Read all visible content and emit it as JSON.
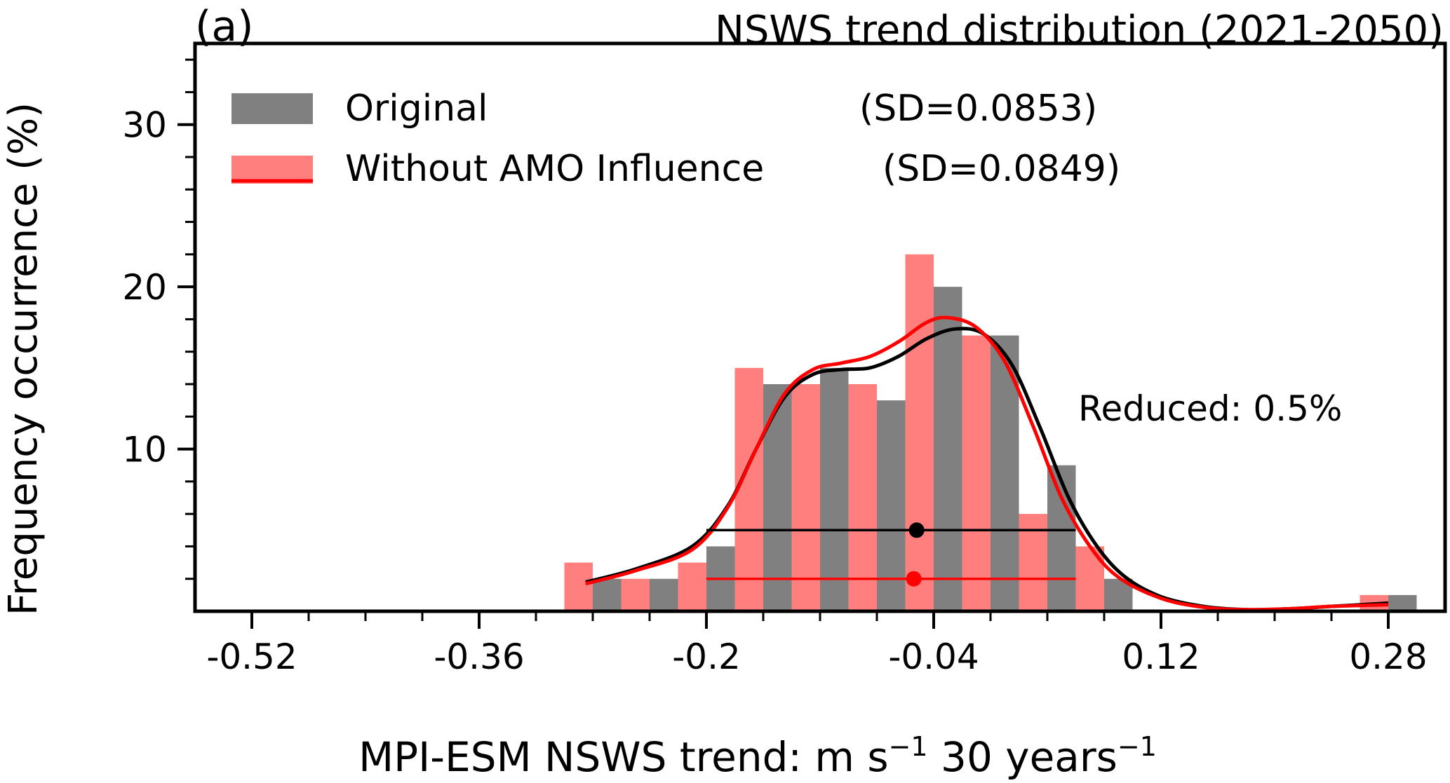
{
  "chart_data": {
    "type": "bar",
    "panel_label": "(a)",
    "title": "NSWS trend distribution (2021-2050)",
    "xlabel": "MPI-ESM NSWS trend: m s",
    "xlabel_sup1": "−1",
    "xlabel_mid": " 30 years",
    "xlabel_sup2": "−1",
    "ylabel": "Frequency occurrence (%)",
    "xlim": [
      -0.56,
      0.32
    ],
    "ylim": [
      0,
      35
    ],
    "xticks": [
      -0.52,
      -0.36,
      -0.2,
      -0.04,
      0.12,
      0.28
    ],
    "xtick_labels": [
      "-0.52",
      "-0.36",
      "-0.2",
      "-0.04",
      "0.12",
      "0.28"
    ],
    "yticks": [
      10,
      20,
      30
    ],
    "ytick_labels": [
      "10",
      "20",
      "30"
    ],
    "legend_position": "top-left",
    "grid": false,
    "bin_centers": [
      -0.28,
      -0.24,
      -0.2,
      -0.16,
      -0.12,
      -0.08,
      -0.04,
      0.0,
      0.04,
      0.08,
      0.12,
      0.16,
      0.2,
      0.24,
      0.28
    ],
    "series": [
      {
        "name": "Original",
        "sd_label": "(SD=0.0853)",
        "color": "#808080",
        "values": [
          2,
          2,
          4,
          14,
          15,
          13,
          20,
          17,
          9,
          2,
          0,
          0,
          0,
          0,
          1
        ],
        "kde": [
          [
            -0.285,
            1.8
          ],
          [
            -0.25,
            2.6
          ],
          [
            -0.21,
            4.0
          ],
          [
            -0.185,
            6.5
          ],
          [
            -0.165,
            10.0
          ],
          [
            -0.145,
            13.2
          ],
          [
            -0.125,
            14.6
          ],
          [
            -0.105,
            14.9
          ],
          [
            -0.085,
            15.0
          ],
          [
            -0.065,
            15.7
          ],
          [
            -0.045,
            16.8
          ],
          [
            -0.025,
            17.4
          ],
          [
            -0.005,
            17.1
          ],
          [
            0.015,
            15.2
          ],
          [
            0.035,
            11.3
          ],
          [
            0.055,
            7.0
          ],
          [
            0.075,
            4.0
          ],
          [
            0.095,
            2.1
          ],
          [
            0.12,
            0.9
          ],
          [
            0.15,
            0.3
          ],
          [
            0.18,
            0.1
          ],
          [
            0.21,
            0.15
          ],
          [
            0.24,
            0.3
          ],
          [
            0.28,
            0.5
          ]
        ],
        "mean": -0.052,
        "range": [
          -0.2,
          0.06
        ],
        "marker_y": 5
      },
      {
        "name": "Without AMO Influence",
        "sd_label": "(SD=0.0849)",
        "color": "#ff7f7f",
        "values": [
          3,
          2,
          3,
          15,
          14,
          14,
          22,
          17,
          6,
          4,
          0,
          0,
          0,
          0,
          1
        ],
        "kde": [
          [
            -0.285,
            1.7
          ],
          [
            -0.25,
            2.5
          ],
          [
            -0.21,
            3.8
          ],
          [
            -0.185,
            6.4
          ],
          [
            -0.165,
            10.0
          ],
          [
            -0.145,
            13.4
          ],
          [
            -0.125,
            14.9
          ],
          [
            -0.105,
            15.3
          ],
          [
            -0.085,
            15.7
          ],
          [
            -0.065,
            16.6
          ],
          [
            -0.045,
            17.8
          ],
          [
            -0.03,
            18.1
          ],
          [
            -0.01,
            17.5
          ],
          [
            0.01,
            15.4
          ],
          [
            0.03,
            11.4
          ],
          [
            0.05,
            7.0
          ],
          [
            0.07,
            4.0
          ],
          [
            0.09,
            2.1
          ],
          [
            0.12,
            0.8
          ],
          [
            0.15,
            0.25
          ],
          [
            0.18,
            0.1
          ],
          [
            0.21,
            0.15
          ],
          [
            0.24,
            0.3
          ],
          [
            0.28,
            0.4
          ]
        ],
        "kde_color": "#ff0000",
        "mean": -0.054,
        "range": [
          -0.2,
          0.06
        ],
        "marker_y": 2
      }
    ],
    "annotation": "Reduced: 0.5%",
    "annotation_color": "#0000ff"
  }
}
